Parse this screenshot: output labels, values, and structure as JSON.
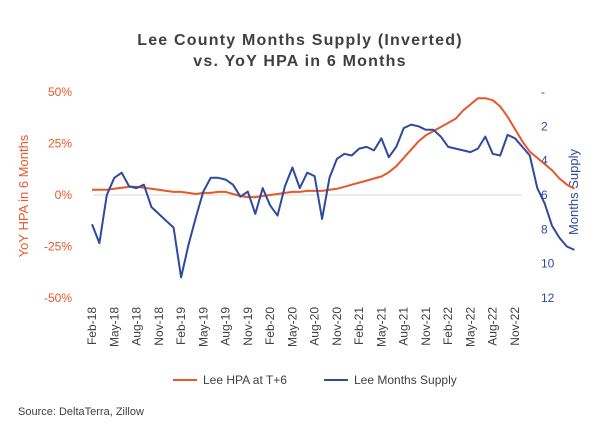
{
  "chart_data": {
    "type": "line",
    "title_lines": [
      "Lee County Months Supply (Inverted)",
      "vs. YoY HPA in 6 Months"
    ],
    "x_tick_labels": [
      "Feb-18",
      "May-18",
      "Aug-18",
      "Nov-18",
      "Feb-19",
      "May-19",
      "Aug-19",
      "Nov-19",
      "Feb-20",
      "May-20",
      "Aug-20",
      "Nov-20",
      "Feb-21",
      "May-21",
      "Aug-21",
      "Nov-21",
      "Feb-22",
      "May-22",
      "Aug-22",
      "Nov-22"
    ],
    "y_left": {
      "label": "YoY HPA in 6 Months",
      "ticks": [
        "50%",
        "25%",
        "0%",
        "-25%",
        "-50%"
      ],
      "ylim": [
        -50,
        50
      ],
      "color": "#e8572a"
    },
    "y_right": {
      "label": "Months Supply",
      "ticks": [
        "-",
        "2",
        "4",
        "6",
        "8",
        "10",
        "12"
      ],
      "ylim": [
        0,
        12
      ],
      "inverted": true,
      "color": "#2e4a9e"
    },
    "series": [
      {
        "name": "Lee HPA at T+6",
        "axis": "left",
        "color": "#e8572a",
        "x_start": "Feb-18",
        "values": [
          2.5,
          2.5,
          2.5,
          3,
          3.5,
          4,
          4,
          3.5,
          3,
          2.5,
          2,
          1.5,
          1.5,
          1,
          0.5,
          1,
          1,
          1.5,
          1.5,
          0.5,
          -0.5,
          -1,
          -1,
          -0.5,
          0,
          0.5,
          1,
          1.5,
          1.5,
          2,
          2,
          2,
          2.5,
          3,
          4,
          5,
          6,
          7,
          8,
          9,
          11,
          14,
          18,
          22,
          26,
          29,
          31,
          33,
          35,
          37,
          41,
          44,
          47,
          47,
          46,
          43,
          38,
          32,
          26,
          21,
          18,
          15,
          12,
          8,
          5,
          3
        ]
      },
      {
        "name": "Lee Months Supply",
        "axis": "right",
        "color": "#2e4a9e",
        "x_start": "Feb-18",
        "values": [
          7.7,
          8.8,
          6,
          5,
          4.7,
          5.5,
          5.6,
          5.4,
          6.7,
          7.1,
          7.5,
          7.9,
          10.8,
          8.9,
          7.3,
          5.8,
          5,
          5,
          5.1,
          5.4,
          6.1,
          5.8,
          7.1,
          5.6,
          6.6,
          7.2,
          5.5,
          4.4,
          5.6,
          4.7,
          4.9,
          7.4,
          5,
          3.9,
          3.6,
          3.7,
          3.3,
          3.2,
          3.4,
          2.7,
          3.8,
          3.2,
          2.1,
          1.9,
          2,
          2.2,
          2.2,
          2.6,
          3.2,
          3.3,
          3.4,
          3.5,
          3.3,
          2.6,
          3.6,
          3.7,
          2.5,
          2.7,
          3.2,
          3.7,
          5.6,
          6.5,
          7.8,
          8.5,
          9,
          9.2
        ],
        "extra_last": null
      }
    ],
    "legend": {
      "position": "bottom",
      "items": [
        "Lee HPA at T+6",
        "Lee Months Supply"
      ]
    },
    "grid": false
  },
  "source_note": "Source: DeltaTerra, Zillow"
}
